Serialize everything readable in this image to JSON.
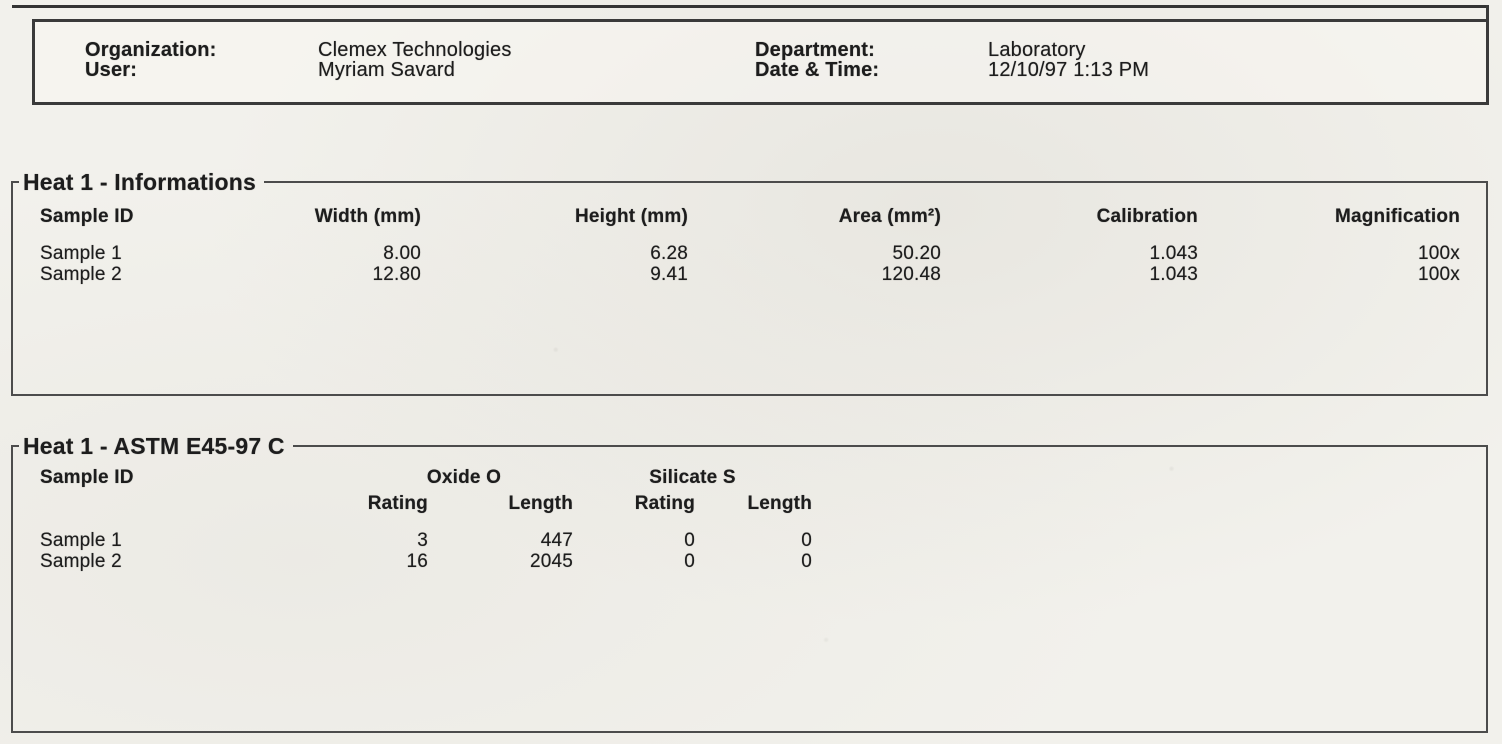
{
  "header": {
    "left": [
      {
        "label": "Organization:",
        "value": "Clemex Technologies"
      },
      {
        "label": "User:",
        "value": "Myriam Savard"
      }
    ],
    "right": [
      {
        "label": "Department:",
        "value": "Laboratory"
      },
      {
        "label": "Date & Time:",
        "value": "12/10/97 1:13 PM"
      }
    ]
  },
  "info_section": {
    "title": "Heat 1 - Informations",
    "columns": [
      "Sample ID",
      "Width (mm)",
      "Height (mm)",
      "Area (mm²)",
      "Calibration",
      "Magnification"
    ],
    "rows": [
      {
        "sample": "Sample 1",
        "width": "8.00",
        "height": "6.28",
        "area": "50.20",
        "calibration": "1.043",
        "magnification": "100x"
      },
      {
        "sample": "Sample 2",
        "width": "12.80",
        "height": "9.41",
        "area": "120.48",
        "calibration": "1.043",
        "magnification": "100x"
      }
    ]
  },
  "astm_section": {
    "title": "Heat 1 - ASTM E45-97 C",
    "sample_column": "Sample ID",
    "groups": [
      {
        "label": "Oxide O",
        "subcolumns": [
          "Rating",
          "Length"
        ]
      },
      {
        "label": "Silicate S",
        "subcolumns": [
          "Rating",
          "Length"
        ]
      }
    ],
    "rows": [
      {
        "sample": "Sample 1",
        "oxide_rating": "3",
        "oxide_length": "447",
        "silicate_rating": "0",
        "silicate_length": "0"
      },
      {
        "sample": "Sample 2",
        "oxide_rating": "16",
        "oxide_length": "2045",
        "silicate_rating": "0",
        "silicate_length": "0"
      }
    ]
  },
  "colors": {
    "page_background": "#f2f1ec",
    "ink": "#1d1d1d",
    "box_border": "#3a3a3a",
    "groupbox_border": "#4c4c4c"
  }
}
